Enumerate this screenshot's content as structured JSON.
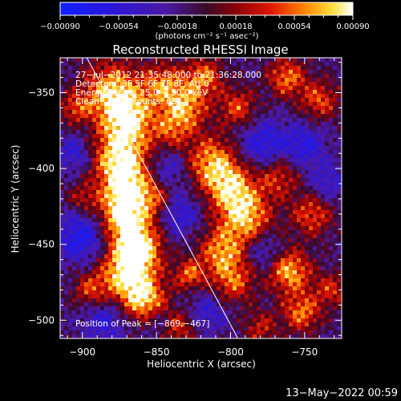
{
  "chart_data": {
    "type": "heatmap",
    "title": "Reconstructed RHESSI Image",
    "xlabel": "Heliocentric X (arcsec)",
    "ylabel": "Heliocentric Y (arcsec)",
    "xlim": [
      -915,
      -725
    ],
    "ylim": [
      -512,
      -327
    ],
    "x_ticks": [
      {
        "value": -900,
        "label": "−900"
      },
      {
        "value": -850,
        "label": "−850"
      },
      {
        "value": -800,
        "label": "−800"
      },
      {
        "value": -750,
        "label": "−750"
      }
    ],
    "y_ticks": [
      {
        "value": -350,
        "label": "−350"
      },
      {
        "value": -400,
        "label": "−400"
      },
      {
        "value": -450,
        "label": "−450"
      },
      {
        "value": -500,
        "label": "−500"
      }
    ],
    "colorbar": {
      "min": -0.0009,
      "max": 0.0009,
      "unit_label": "(photons cm⁻² s⁻¹ asec⁻²)",
      "tick_labels": [
        "−0.00090",
        "−0.00054",
        "−0.00018",
        "0.00018",
        "0.00054",
        "0.00090"
      ]
    },
    "annotations": [
      "27−Jul−2012 21:35:48.000 to 21:36:28.000",
      "Detectors: 3F 5F 6F 7F 8F, Att 0",
      "Energy Range: 25.0 − 50.0 keV",
      "Clean    Total counts: 684."
    ],
    "peak": {
      "label": "Position of Peak = [−869,−467]",
      "x": -869,
      "y": -467
    },
    "limb_line": {
      "points": [
        [
          -897,
          -327
        ],
        [
          -795,
          -512
        ]
      ]
    },
    "grid": false
  },
  "timestamp": "13−May−2022 00:59"
}
